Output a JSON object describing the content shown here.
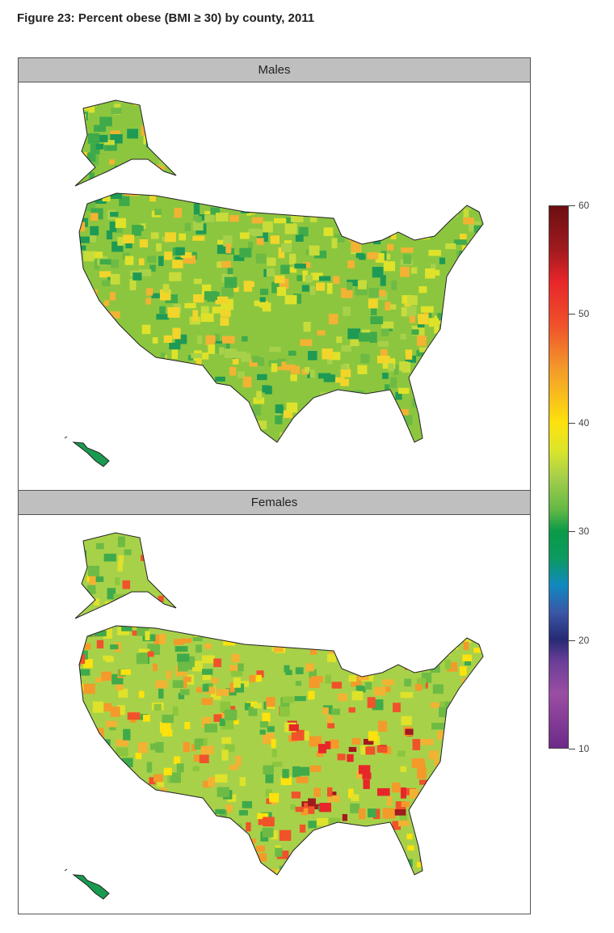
{
  "title": "Figure 23: Percent obese (BMI ≥ 30) by county, 2011",
  "panels": [
    {
      "label": "Males"
    },
    {
      "label": "Females"
    }
  ],
  "legend": {
    "ticks": [
      "60",
      "50",
      "40",
      "30",
      "20",
      "10"
    ],
    "min": 10,
    "max": 60,
    "colors": {
      "low": "#6d2a8a",
      "mid": "#0a9a47",
      "high": "#fde20d",
      "top": "#6b0f12"
    }
  }
}
